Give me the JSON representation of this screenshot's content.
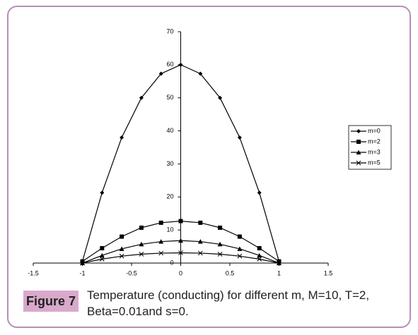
{
  "chart_data": {
    "type": "line",
    "figure_label": "Figure 7",
    "caption": "Temperature (conducting) for different m, M=10, T=2, Beta=0.01and s=0.",
    "x": [
      -1,
      -0.8,
      -0.6,
      -0.4,
      -0.2,
      0,
      0.2,
      0.4,
      0.6,
      0.8,
      1
    ],
    "series": [
      {
        "name": "m=0",
        "color": "#000000",
        "marker": "diamond",
        "values": [
          0.5,
          21.3,
          38,
          50,
          57.3,
          60,
          57.3,
          50,
          38,
          21.3,
          0.5
        ]
      },
      {
        "name": "m=2",
        "color": "#000000",
        "marker": "square",
        "values": [
          0.5,
          4.5,
          8,
          10.7,
          12.2,
          12.7,
          12.2,
          10.7,
          8,
          4.5,
          0.5
        ]
      },
      {
        "name": "m=3",
        "color": "#000000",
        "marker": "triangle",
        "values": [
          0,
          2.3,
          4.3,
          5.7,
          6.5,
          6.8,
          6.5,
          5.7,
          4.3,
          2.3,
          0
        ]
      },
      {
        "name": "m=5",
        "color": "#000000",
        "marker": "x",
        "values": [
          0,
          1.2,
          2.1,
          2.7,
          3,
          3.1,
          3,
          2.7,
          2.1,
          1.2,
          0
        ]
      }
    ],
    "xlim": [
      -1.5,
      1.5
    ],
    "xticks": [
      -1.5,
      -1,
      -0.5,
      0,
      0.5,
      1,
      1.5
    ],
    "ylim": [
      0,
      70
    ],
    "yticks": [
      0,
      10,
      20,
      30,
      40,
      50,
      60,
      70
    ],
    "legend": "right"
  }
}
